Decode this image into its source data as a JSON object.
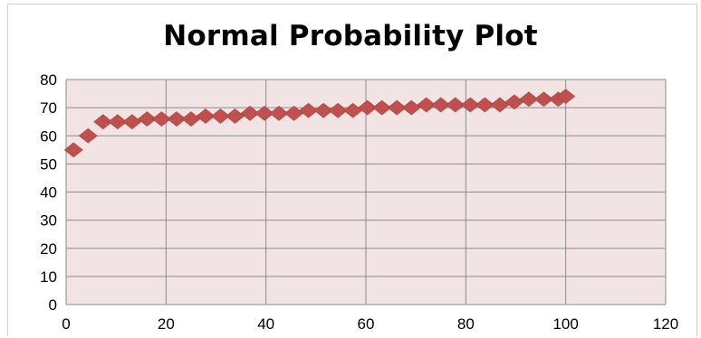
{
  "chart_data": {
    "type": "scatter",
    "title": "Normal Probability Plot",
    "xlabel": "",
    "ylabel": "",
    "xlim": [
      0,
      120
    ],
    "ylim": [
      0,
      80
    ],
    "x_ticks": [
      "0",
      "20",
      "40",
      "60",
      "80",
      "100",
      "120"
    ],
    "y_ticks": [
      "0",
      "10",
      "20",
      "30",
      "40",
      "50",
      "60",
      "70",
      "80"
    ],
    "grid": true,
    "legend": "none",
    "marker": "diamond",
    "marker_color": "#C0504D",
    "plot_background": "#F2E4E4",
    "series": [
      {
        "points": [
          [
            1.5,
            55
          ],
          [
            4.4,
            60
          ],
          [
            7.4,
            65
          ],
          [
            10.3,
            65
          ],
          [
            13.2,
            65
          ],
          [
            16.2,
            66
          ],
          [
            19.1,
            66
          ],
          [
            22.1,
            66
          ],
          [
            25.0,
            66
          ],
          [
            27.9,
            67
          ],
          [
            30.9,
            67
          ],
          [
            33.8,
            67
          ],
          [
            36.8,
            68
          ],
          [
            39.7,
            68
          ],
          [
            42.6,
            68
          ],
          [
            45.6,
            68
          ],
          [
            48.5,
            69
          ],
          [
            51.5,
            69
          ],
          [
            54.4,
            69
          ],
          [
            57.4,
            69
          ],
          [
            60.3,
            70
          ],
          [
            63.2,
            70
          ],
          [
            66.2,
            70
          ],
          [
            69.1,
            70
          ],
          [
            72.1,
            71
          ],
          [
            75.0,
            71
          ],
          [
            77.9,
            71
          ],
          [
            80.9,
            71
          ],
          [
            83.8,
            71
          ],
          [
            86.8,
            71
          ],
          [
            89.7,
            72
          ],
          [
            92.6,
            73
          ],
          [
            95.6,
            73
          ],
          [
            98.5,
            73
          ],
          [
            100.0,
            74
          ]
        ]
      }
    ]
  }
}
